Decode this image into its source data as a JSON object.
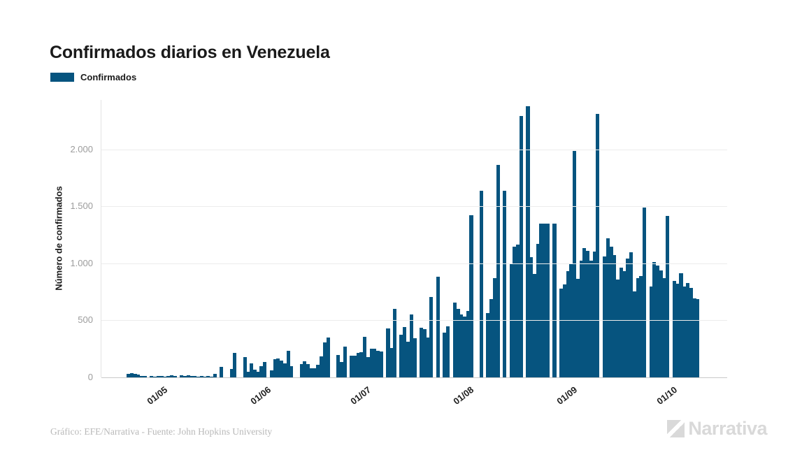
{
  "header": {
    "title": "Confirmados diarios en Venezuela"
  },
  "legend": {
    "label": "Confirmados"
  },
  "footer": {
    "credit": "Gráfico: EFE/Narrativa - Fuente: John Hopkins University",
    "brand": "Narrativa"
  },
  "colors": {
    "bar": "#06547f",
    "grid": "#ececec",
    "baseline": "#c9c9c9",
    "ytick_text": "#9c9c9c",
    "title_text": "#1a1a1a",
    "footer_text": "#b9b9b9",
    "brand_text": "#d9d9d9"
  },
  "chart_data": {
    "type": "bar",
    "title": "Confirmados diarios en Venezuela",
    "series_name": "Confirmados",
    "xlabel": "",
    "ylabel": "Número de confirmados",
    "ylim": [
      0,
      2435
    ],
    "grid": true,
    "legend_position": "top-left",
    "start_date": "2020-04-20",
    "y_ticks": [
      {
        "value": 0,
        "label": "0"
      },
      {
        "value": 500,
        "label": "500"
      },
      {
        "value": 1000,
        "label": "1.000"
      },
      {
        "value": 1500,
        "label": "1.500"
      },
      {
        "value": 2000,
        "label": "2.000"
      }
    ],
    "x_ticks": [
      {
        "index": 11,
        "label": "01/05"
      },
      {
        "index": 42,
        "label": "01/06"
      },
      {
        "index": 72,
        "label": "01/07"
      },
      {
        "index": 103,
        "label": "01/08"
      },
      {
        "index": 134,
        "label": "01/09"
      },
      {
        "index": 164,
        "label": "01/10"
      }
    ],
    "values": [
      30,
      37,
      30,
      25,
      12,
      12,
      2,
      12,
      6,
      12,
      15,
      4,
      12,
      18,
      12,
      2,
      18,
      12,
      18,
      12,
      12,
      6,
      12,
      8,
      12,
      6,
      30,
      2,
      95,
      2,
      2,
      75,
      215,
      2,
      2,
      180,
      50,
      120,
      70,
      50,
      100,
      133,
      2,
      61,
      160,
      163,
      147,
      122,
      235,
      100,
      2,
      2,
      118,
      139,
      118,
      82,
      82,
      112,
      184,
      307,
      350,
      2,
      2,
      195,
      135,
      270,
      2,
      190,
      190,
      215,
      220,
      355,
      180,
      250,
      250,
      233,
      230,
      2,
      430,
      258,
      600,
      2,
      375,
      440,
      310,
      550,
      345,
      2,
      435,
      425,
      350,
      705,
      2,
      885,
      2,
      390,
      450,
      2,
      655,
      600,
      550,
      535,
      580,
      1425,
      2,
      2,
      1640,
      2,
      565,
      690,
      870,
      1865,
      2,
      1640,
      2,
      1000,
      1145,
      1165,
      2295,
      2,
      2380,
      1055,
      910,
      1170,
      1350,
      1350,
      1350,
      2,
      1350,
      2,
      780,
      815,
      930,
      995,
      1990,
      865,
      1025,
      1135,
      1110,
      1025,
      1105,
      2310,
      2,
      1060,
      1220,
      1150,
      1075,
      860,
      965,
      930,
      1040,
      1100,
      755,
      870,
      890,
      1490,
      2,
      800,
      1010,
      980,
      940,
      870,
      1415,
      2,
      845,
      820,
      915,
      800,
      830,
      785,
      695,
      690
    ]
  }
}
